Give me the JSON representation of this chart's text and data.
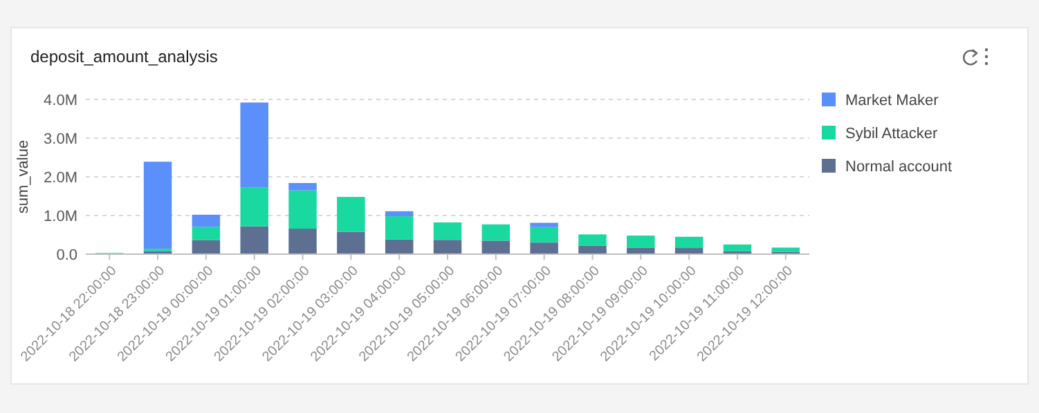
{
  "chart_data": {
    "type": "bar",
    "title": "deposit_amount_analysis",
    "ylabel": "sum_value",
    "stacked": true,
    "categories": [
      "2022-10-18 22:00:00",
      "2022-10-18 23:00:00",
      "2022-10-19 00:00:00",
      "2022-10-19 01:00:00",
      "2022-10-19 02:00:00",
      "2022-10-19 03:00:00",
      "2022-10-19 04:00:00",
      "2022-10-19 05:00:00",
      "2022-10-19 06:00:00",
      "2022-10-19 07:00:00",
      "2022-10-19 08:00:00",
      "2022-10-19 09:00:00",
      "2022-10-19 10:00:00",
      "2022-10-19 11:00:00",
      "2022-10-19 12:00:00"
    ],
    "series": [
      {
        "name": "Normal account",
        "color": "#5d7092",
        "values": [
          0,
          80000,
          360000,
          720000,
          660000,
          580000,
          380000,
          370000,
          350000,
          300000,
          220000,
          170000,
          160000,
          80000,
          60000
        ]
      },
      {
        "name": "Sybil Attacker",
        "color": "#1ad9a0",
        "values": [
          30000,
          60000,
          350000,
          1010000,
          990000,
          900000,
          600000,
          450000,
          420000,
          400000,
          290000,
          310000,
          290000,
          170000,
          110000
        ]
      },
      {
        "name": "Market Maker",
        "color": "#5b8ff9",
        "values": [
          0,
          2250000,
          310000,
          2190000,
          190000,
          0,
          130000,
          0,
          0,
          110000,
          0,
          0,
          0,
          0,
          0
        ]
      }
    ],
    "ylim": [
      0,
      4000000
    ],
    "yticks": [
      {
        "value": 0,
        "label": "0.0"
      },
      {
        "value": 1000000,
        "label": "1.0M"
      },
      {
        "value": 2000000,
        "label": "2.0M"
      },
      {
        "value": 3000000,
        "label": "3.0M"
      },
      {
        "value": 4000000,
        "label": "4.0M"
      }
    ],
    "grid": "y",
    "legend": "right"
  }
}
